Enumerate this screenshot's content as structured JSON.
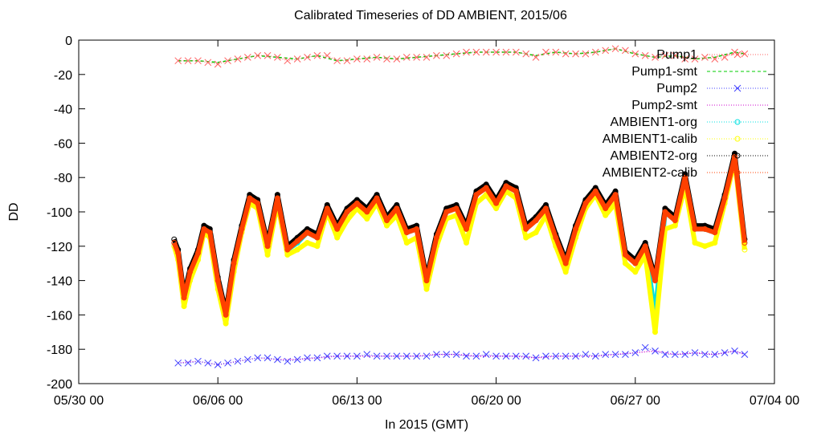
{
  "chart_data": {
    "type": "scatter",
    "title": "Calibrated Timeseries of DD AMBIENT, 2015/06",
    "xlabel": "In 2015 (GMT)",
    "ylabel": "DD",
    "ylim": [
      -200,
      0
    ],
    "y_ticks": [
      "0",
      "-20",
      "-40",
      "-60",
      "-80",
      "-100",
      "-120",
      "-140",
      "-160",
      "-180",
      "-200"
    ],
    "x_axis": {
      "start": "2015-05-30 00:00",
      "end": "2015-07-04 00:00",
      "ticks": [
        {
          "date": "2015-05-30",
          "label": "05/30 00"
        },
        {
          "date": "2015-06-06",
          "label": "06/06 00"
        },
        {
          "date": "2015-06-13",
          "label": "06/13 00"
        },
        {
          "date": "2015-06-20",
          "label": "06/20 00"
        },
        {
          "date": "2015-06-27",
          "label": "06/27 00"
        },
        {
          "date": "2015-07-04",
          "label": "07/04 00"
        }
      ]
    },
    "legend_position": "top-right",
    "grid": false,
    "series": [
      {
        "name": "Pump1",
        "marker": "x",
        "color": "#ff6060",
        "line": "dotted",
        "x": [
          "2015-06-04",
          "2015-06-04.5",
          "2015-06-05",
          "2015-06-05.5",
          "2015-06-06",
          "2015-06-06.5",
          "2015-06-07",
          "2015-06-07.5",
          "2015-06-08",
          "2015-06-08.5",
          "2015-06-09",
          "2015-06-09.5",
          "2015-06-10",
          "2015-06-10.5",
          "2015-06-11",
          "2015-06-11.5",
          "2015-06-12",
          "2015-06-12.5",
          "2015-06-13",
          "2015-06-13.5",
          "2015-06-14",
          "2015-06-14.5",
          "2015-06-15",
          "2015-06-15.5",
          "2015-06-16",
          "2015-06-16.5",
          "2015-06-17",
          "2015-06-17.5",
          "2015-06-18",
          "2015-06-18.5",
          "2015-06-19",
          "2015-06-19.5",
          "2015-06-20",
          "2015-06-20.5",
          "2015-06-21",
          "2015-06-21.5",
          "2015-06-22",
          "2015-06-22.5",
          "2015-06-23",
          "2015-06-23.5",
          "2015-06-24",
          "2015-06-24.5",
          "2015-06-25",
          "2015-06-25.5",
          "2015-06-26",
          "2015-06-26.5",
          "2015-06-27",
          "2015-06-27.5",
          "2015-06-28",
          "2015-06-28.5",
          "2015-06-29",
          "2015-06-29.5",
          "2015-06-30",
          "2015-06-30.5",
          "2015-07-01",
          "2015-07-01.5",
          "2015-07-02",
          "2015-07-02.5"
        ],
        "y": [
          -12,
          -12,
          -12,
          -13,
          -14,
          -12,
          -11,
          -10,
          -9,
          -9,
          -10,
          -12,
          -11,
          -10,
          -9,
          -9,
          -12,
          -12,
          -11,
          -11,
          -10,
          -11,
          -11,
          -10,
          -10,
          -10,
          -9,
          -9,
          -8,
          -7,
          -7,
          -7,
          -7,
          -7,
          -7,
          -8,
          -10,
          -7,
          -7,
          -8,
          -8,
          -8,
          -7,
          -6,
          -5,
          -6,
          -8,
          -9,
          -10,
          -9,
          -9,
          -11,
          -11,
          -10,
          -11,
          -10,
          -7,
          -8
        ]
      },
      {
        "name": "Pump1-smt",
        "marker": "none",
        "color": "#00cc00",
        "line": "dashed",
        "x": [
          "2015-06-04",
          "2015-06-05",
          "2015-06-06",
          "2015-06-07",
          "2015-06-08",
          "2015-06-09",
          "2015-06-10",
          "2015-06-11",
          "2015-06-12",
          "2015-06-13",
          "2015-06-14",
          "2015-06-15",
          "2015-06-16",
          "2015-06-17",
          "2015-06-18",
          "2015-06-19",
          "2015-06-20",
          "2015-06-21",
          "2015-06-22",
          "2015-06-23",
          "2015-06-24",
          "2015-06-25",
          "2015-06-26",
          "2015-06-27",
          "2015-06-28",
          "2015-06-29",
          "2015-06-30",
          "2015-07-01",
          "2015-07-02",
          "2015-07-02.5"
        ],
        "y": [
          -12,
          -12,
          -13,
          -11,
          -9,
          -10,
          -11,
          -9,
          -12,
          -11,
          -10,
          -11,
          -10,
          -9,
          -8,
          -7,
          -7,
          -7,
          -9,
          -7,
          -8,
          -7,
          -5,
          -8,
          -10,
          -9,
          -11,
          -10,
          -7,
          -8
        ]
      },
      {
        "name": "Pump2",
        "marker": "x",
        "color": "#4040ff",
        "line": "dotted",
        "x": [
          "2015-06-04",
          "2015-06-04.5",
          "2015-06-05",
          "2015-06-05.5",
          "2015-06-06",
          "2015-06-06.5",
          "2015-06-07",
          "2015-06-07.5",
          "2015-06-08",
          "2015-06-08.5",
          "2015-06-09",
          "2015-06-09.5",
          "2015-06-10",
          "2015-06-10.5",
          "2015-06-11",
          "2015-06-11.5",
          "2015-06-12",
          "2015-06-12.5",
          "2015-06-13",
          "2015-06-13.5",
          "2015-06-14",
          "2015-06-14.5",
          "2015-06-15",
          "2015-06-15.5",
          "2015-06-16",
          "2015-06-16.5",
          "2015-06-17",
          "2015-06-17.5",
          "2015-06-18",
          "2015-06-18.5",
          "2015-06-19",
          "2015-06-19.5",
          "2015-06-20",
          "2015-06-20.5",
          "2015-06-21",
          "2015-06-21.5",
          "2015-06-22",
          "2015-06-22.5",
          "2015-06-23",
          "2015-06-23.5",
          "2015-06-24",
          "2015-06-24.5",
          "2015-06-25",
          "2015-06-25.5",
          "2015-06-26",
          "2015-06-26.5",
          "2015-06-27",
          "2015-06-27.5",
          "2015-06-28",
          "2015-06-28.5",
          "2015-06-29",
          "2015-06-29.5",
          "2015-06-30",
          "2015-06-30.5",
          "2015-07-01",
          "2015-07-01.5",
          "2015-07-02",
          "2015-07-02.5"
        ],
        "y": [
          -188,
          -188,
          -187,
          -188,
          -189,
          -188,
          -187,
          -186,
          -185,
          -185,
          -186,
          -187,
          -186,
          -185,
          -185,
          -184,
          -184,
          -184,
          -184,
          -183,
          -184,
          -184,
          -184,
          -184,
          -184,
          -184,
          -183,
          -183,
          -183,
          -184,
          -184,
          -183,
          -184,
          -184,
          -184,
          -184,
          -185,
          -184,
          -184,
          -184,
          -184,
          -183,
          -184,
          -183,
          -183,
          -183,
          -182,
          -179,
          -181,
          -183,
          -183,
          -183,
          -182,
          -183,
          -183,
          -182,
          -181,
          -183
        ]
      },
      {
        "name": "Pump2-smt",
        "marker": "none",
        "color": "#cc00cc",
        "line": "dotted",
        "x": [
          "2015-06-04",
          "2015-06-05",
          "2015-06-06",
          "2015-06-07",
          "2015-06-08",
          "2015-06-09",
          "2015-06-10",
          "2015-06-11",
          "2015-06-12",
          "2015-06-13",
          "2015-06-14",
          "2015-06-15",
          "2015-06-16",
          "2015-06-17",
          "2015-06-18",
          "2015-06-19",
          "2015-06-20",
          "2015-06-21",
          "2015-06-22",
          "2015-06-23",
          "2015-06-24",
          "2015-06-25",
          "2015-06-26",
          "2015-06-27",
          "2015-06-28",
          "2015-06-29",
          "2015-06-30",
          "2015-07-01",
          "2015-07-02",
          "2015-07-02.5"
        ],
        "y": [
          -188,
          -187,
          -189,
          -187,
          -185,
          -186,
          -186,
          -185,
          -184,
          -184,
          -184,
          -184,
          -184,
          -183,
          -183,
          -184,
          -184,
          -184,
          -185,
          -184,
          -184,
          -184,
          -183,
          -182,
          -181,
          -183,
          -182,
          -183,
          -181,
          -183
        ]
      },
      {
        "name": "AMBIENT1-org",
        "marker": "circle",
        "color": "#00e0e0",
        "line": "none",
        "x": [
          "2015-06-03.8",
          "2015-06-04",
          "2015-06-04.3",
          "2015-06-04.6",
          "2015-06-05",
          "2015-06-05.3",
          "2015-06-05.6",
          "2015-06-06",
          "2015-06-06.4",
          "2015-06-06.8",
          "2015-06-07.2",
          "2015-06-07.6",
          "2015-06-08",
          "2015-06-08.5",
          "2015-06-09",
          "2015-06-09.5",
          "2015-06-10",
          "2015-06-10.5",
          "2015-06-11",
          "2015-06-11.5",
          "2015-06-12",
          "2015-06-12.5",
          "2015-06-13",
          "2015-06-13.5",
          "2015-06-14",
          "2015-06-14.5",
          "2015-06-15",
          "2015-06-15.5",
          "2015-06-16",
          "2015-06-16.5",
          "2015-06-17",
          "2015-06-17.5",
          "2015-06-18",
          "2015-06-18.5",
          "2015-06-19",
          "2015-06-19.5",
          "2015-06-20",
          "2015-06-20.5",
          "2015-06-21",
          "2015-06-21.5",
          "2015-06-22",
          "2015-06-22.5",
          "2015-06-23",
          "2015-06-23.5",
          "2015-06-24",
          "2015-06-24.5",
          "2015-06-25",
          "2015-06-25.5",
          "2015-06-26",
          "2015-06-26.5",
          "2015-06-27",
          "2015-06-27.5",
          "2015-06-28",
          "2015-06-28.5",
          "2015-06-29",
          "2015-06-29.5",
          "2015-06-30",
          "2015-06-30.5",
          "2015-07-01",
          "2015-07-01.5",
          "2015-07-02",
          "2015-07-02.5"
        ],
        "y": [
          -118,
          -125,
          -150,
          -135,
          -125,
          -110,
          -112,
          -140,
          -160,
          -130,
          -110,
          -92,
          -95,
          -120,
          -92,
          -122,
          -118,
          -112,
          -115,
          -98,
          -110,
          -100,
          -95,
          -100,
          -92,
          -105,
          -98,
          -112,
          -110,
          -140,
          -115,
          -100,
          -98,
          -110,
          -90,
          -86,
          -95,
          -85,
          -88,
          -110,
          -105,
          -98,
          -115,
          -130,
          -110,
          -95,
          -88,
          -98,
          -90,
          -125,
          -130,
          -120,
          -160,
          -100,
          -105,
          -80,
          -110,
          -110,
          -112,
          -92,
          -68,
          -118
        ]
      },
      {
        "name": "AMBIENT1-calib",
        "marker": "circle",
        "color": "#ffff00",
        "line": "none",
        "x": [
          "2015-06-03.8",
          "2015-06-04",
          "2015-06-04.3",
          "2015-06-04.6",
          "2015-06-05",
          "2015-06-05.3",
          "2015-06-05.6",
          "2015-06-06",
          "2015-06-06.4",
          "2015-06-06.8",
          "2015-06-07.2",
          "2015-06-07.6",
          "2015-06-08",
          "2015-06-08.5",
          "2015-06-09",
          "2015-06-09.5",
          "2015-06-10",
          "2015-06-10.5",
          "2015-06-11",
          "2015-06-11.5",
          "2015-06-12",
          "2015-06-12.5",
          "2015-06-13",
          "2015-06-13.5",
          "2015-06-14",
          "2015-06-14.5",
          "2015-06-15",
          "2015-06-15.5",
          "2015-06-16",
          "2015-06-16.5",
          "2015-06-17",
          "2015-06-17.5",
          "2015-06-18",
          "2015-06-18.5",
          "2015-06-19",
          "2015-06-19.5",
          "2015-06-20",
          "2015-06-20.5",
          "2015-06-21",
          "2015-06-21.5",
          "2015-06-22",
          "2015-06-22.5",
          "2015-06-23",
          "2015-06-23.5",
          "2015-06-24",
          "2015-06-24.5",
          "2015-06-25",
          "2015-06-25.5",
          "2015-06-26",
          "2015-06-26.5",
          "2015-06-27",
          "2015-06-27.5",
          "2015-06-28",
          "2015-06-28.5",
          "2015-06-29",
          "2015-06-29.5",
          "2015-06-30",
          "2015-06-30.5",
          "2015-07-01",
          "2015-07-01.5",
          "2015-07-02",
          "2015-07-02.5"
        ],
        "y": [
          -120,
          -128,
          -155,
          -140,
          -128,
          -112,
          -115,
          -145,
          -165,
          -135,
          -112,
          -95,
          -98,
          -125,
          -95,
          -125,
          -122,
          -118,
          -120,
          -100,
          -115,
          -105,
          -98,
          -104,
          -95,
          -108,
          -102,
          -118,
          -115,
          -145,
          -120,
          -104,
          -102,
          -118,
          -95,
          -90,
          -98,
          -88,
          -92,
          -115,
          -112,
          -102,
          -120,
          -135,
          -115,
          -98,
          -90,
          -102,
          -95,
          -130,
          -135,
          -125,
          -170,
          -110,
          -108,
          -85,
          -118,
          -120,
          -118,
          -95,
          -70,
          -122
        ]
      },
      {
        "name": "AMBIENT2-org",
        "marker": "circle",
        "color": "#000000",
        "line": "none",
        "x": [
          "2015-06-03.8",
          "2015-06-04",
          "2015-06-04.3",
          "2015-06-04.6",
          "2015-06-05",
          "2015-06-05.3",
          "2015-06-05.6",
          "2015-06-06",
          "2015-06-06.4",
          "2015-06-06.8",
          "2015-06-07.2",
          "2015-06-07.6",
          "2015-06-08",
          "2015-06-08.5",
          "2015-06-09",
          "2015-06-09.5",
          "2015-06-10",
          "2015-06-10.5",
          "2015-06-11",
          "2015-06-11.5",
          "2015-06-12",
          "2015-06-12.5",
          "2015-06-13",
          "2015-06-13.5",
          "2015-06-14",
          "2015-06-14.5",
          "2015-06-15",
          "2015-06-15.5",
          "2015-06-16",
          "2015-06-16.5",
          "2015-06-17",
          "2015-06-17.5",
          "2015-06-18",
          "2015-06-18.5",
          "2015-06-19",
          "2015-06-19.5",
          "2015-06-20",
          "2015-06-20.5",
          "2015-06-21",
          "2015-06-21.5",
          "2015-06-22",
          "2015-06-22.5",
          "2015-06-23",
          "2015-06-23.5",
          "2015-06-24",
          "2015-06-24.5",
          "2015-06-25",
          "2015-06-25.5",
          "2015-06-26",
          "2015-06-26.5",
          "2015-06-27",
          "2015-06-27.5",
          "2015-06-28",
          "2015-06-28.5",
          "2015-06-29",
          "2015-06-29.5",
          "2015-06-30",
          "2015-06-30.5",
          "2015-07-01",
          "2015-07-01.5",
          "2015-07-02",
          "2015-07-02.5"
        ],
        "y": [
          -116,
          -122,
          -148,
          -133,
          -122,
          -108,
          -110,
          -138,
          -158,
          -128,
          -108,
          -90,
          -93,
          -118,
          -90,
          -120,
          -115,
          -110,
          -113,
          -96,
          -108,
          -98,
          -93,
          -98,
          -90,
          -103,
          -96,
          -110,
          -108,
          -138,
          -113,
          -98,
          -96,
          -108,
          -88,
          -84,
          -93,
          -83,
          -86,
          -108,
          -103,
          -96,
          -113,
          -128,
          -108,
          -93,
          -86,
          -96,
          -88,
          -123,
          -128,
          -118,
          -138,
          -98,
          -103,
          -78,
          -108,
          -108,
          -110,
          -90,
          -66,
          -116
        ]
      },
      {
        "name": "AMBIENT2-calib",
        "marker": "circle",
        "color": "#ff4000",
        "line": "none",
        "x": [
          "2015-06-03.8",
          "2015-06-04",
          "2015-06-04.3",
          "2015-06-04.6",
          "2015-06-05",
          "2015-06-05.3",
          "2015-06-05.6",
          "2015-06-06",
          "2015-06-06.4",
          "2015-06-06.8",
          "2015-06-07.2",
          "2015-06-07.6",
          "2015-06-08",
          "2015-06-08.5",
          "2015-06-09",
          "2015-06-09.5",
          "2015-06-10",
          "2015-06-10.5",
          "2015-06-11",
          "2015-06-11.5",
          "2015-06-12",
          "2015-06-12.5",
          "2015-06-13",
          "2015-06-13.5",
          "2015-06-14",
          "2015-06-14.5",
          "2015-06-15",
          "2015-06-15.5",
          "2015-06-16",
          "2015-06-16.5",
          "2015-06-17",
          "2015-06-17.5",
          "2015-06-18",
          "2015-06-18.5",
          "2015-06-19",
          "2015-06-19.5",
          "2015-06-20",
          "2015-06-20.5",
          "2015-06-21",
          "2015-06-21.5",
          "2015-06-22",
          "2015-06-22.5",
          "2015-06-23",
          "2015-06-23.5",
          "2015-06-24",
          "2015-06-24.5",
          "2015-06-25",
          "2015-06-25.5",
          "2015-06-26",
          "2015-06-26.5",
          "2015-06-27",
          "2015-06-27.5",
          "2015-06-28",
          "2015-06-28.5",
          "2015-06-29",
          "2015-06-29.5",
          "2015-06-30",
          "2015-06-30.5",
          "2015-07-01",
          "2015-07-01.5",
          "2015-07-02",
          "2015-07-02.5"
        ],
        "y": [
          -118,
          -124,
          -150,
          -135,
          -124,
          -110,
          -112,
          -140,
          -160,
          -130,
          -110,
          -92,
          -95,
          -120,
          -92,
          -122,
          -117,
          -112,
          -115,
          -98,
          -110,
          -100,
          -95,
          -100,
          -92,
          -105,
          -98,
          -112,
          -110,
          -140,
          -115,
          -100,
          -98,
          -110,
          -90,
          -86,
          -95,
          -85,
          -88,
          -110,
          -105,
          -98,
          -115,
          -130,
          -110,
          -95,
          -88,
          -98,
          -90,
          -125,
          -130,
          -120,
          -140,
          -100,
          -105,
          -80,
          -110,
          -110,
          -112,
          -92,
          -68,
          -118
        ]
      }
    ]
  }
}
